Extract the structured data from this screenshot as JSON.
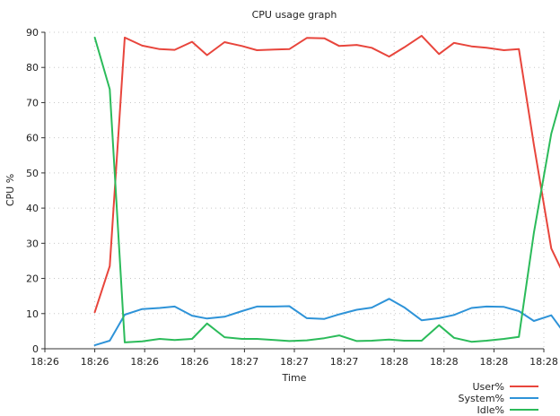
{
  "chart_data": {
    "type": "line",
    "title": "CPU usage graph",
    "xlabel": "Time",
    "ylabel": "CPU %",
    "ylim": [
      0,
      90
    ],
    "yticks": [
      0,
      10,
      20,
      30,
      40,
      50,
      60,
      70,
      80,
      90
    ],
    "xlim": [
      0,
      20
    ],
    "xticks": [
      {
        "x": 0,
        "label": "18:26"
      },
      {
        "x": 2,
        "label": "18:26"
      },
      {
        "x": 4,
        "label": "18:26"
      },
      {
        "x": 6,
        "label": "18:26"
      },
      {
        "x": 8,
        "label": "18:27"
      },
      {
        "x": 10,
        "label": "18:27"
      },
      {
        "x": 12,
        "label": "18:27"
      },
      {
        "x": 14,
        "label": "18:28"
      },
      {
        "x": 16,
        "label": "18:28"
      },
      {
        "x": 18,
        "label": "18:28"
      },
      {
        "x": 20,
        "label": "18:28"
      }
    ],
    "grid": true,
    "legend_position": "bottom-right",
    "x": [
      2.0,
      2.6,
      3.2,
      3.9,
      4.6,
      5.2,
      5.9,
      6.5,
      7.2,
      7.9,
      8.5,
      9.2,
      9.8,
      10.5,
      11.2,
      11.8,
      12.5,
      13.1,
      13.8,
      14.4,
      15.1,
      15.8,
      16.4,
      17.1,
      17.7,
      18.4,
      19.0,
      19.6,
      20.3,
      20.9
    ],
    "series": [
      {
        "name": "User%",
        "color": "#e8453c",
        "values": [
          10.4,
          23.5,
          88.5,
          86.2,
          85.2,
          85.0,
          87.3,
          83.5,
          87.2,
          86.1,
          84.9,
          85.1,
          85.2,
          88.4,
          88.3,
          86.1,
          86.4,
          85.6,
          83.1,
          85.7,
          89.0,
          83.8,
          87.0,
          86.0,
          85.6,
          84.9,
          85.2,
          58.0,
          28.5,
          19.6
        ]
      },
      {
        "name": "System%",
        "color": "#2e93d8",
        "values": [
          1.0,
          2.3,
          9.7,
          11.3,
          11.6,
          12.0,
          9.4,
          8.6,
          9.1,
          10.7,
          12.0,
          12.0,
          12.1,
          8.7,
          8.5,
          9.8,
          11.1,
          11.7,
          14.2,
          11.8,
          8.1,
          8.7,
          9.6,
          11.6,
          12.0,
          11.9,
          10.7,
          7.9,
          9.5,
          3.7
        ]
      },
      {
        "name": "Idle%",
        "color": "#2bbb5a",
        "values": [
          88.5,
          73.8,
          1.8,
          2.1,
          2.8,
          2.5,
          2.8,
          7.2,
          3.3,
          2.8,
          2.8,
          2.5,
          2.2,
          2.4,
          3.0,
          3.8,
          2.2,
          2.3,
          2.6,
          2.3,
          2.3,
          6.7,
          3.1,
          2.0,
          2.3,
          2.8,
          3.4,
          33.0,
          61.2,
          76.4
        ]
      }
    ]
  }
}
